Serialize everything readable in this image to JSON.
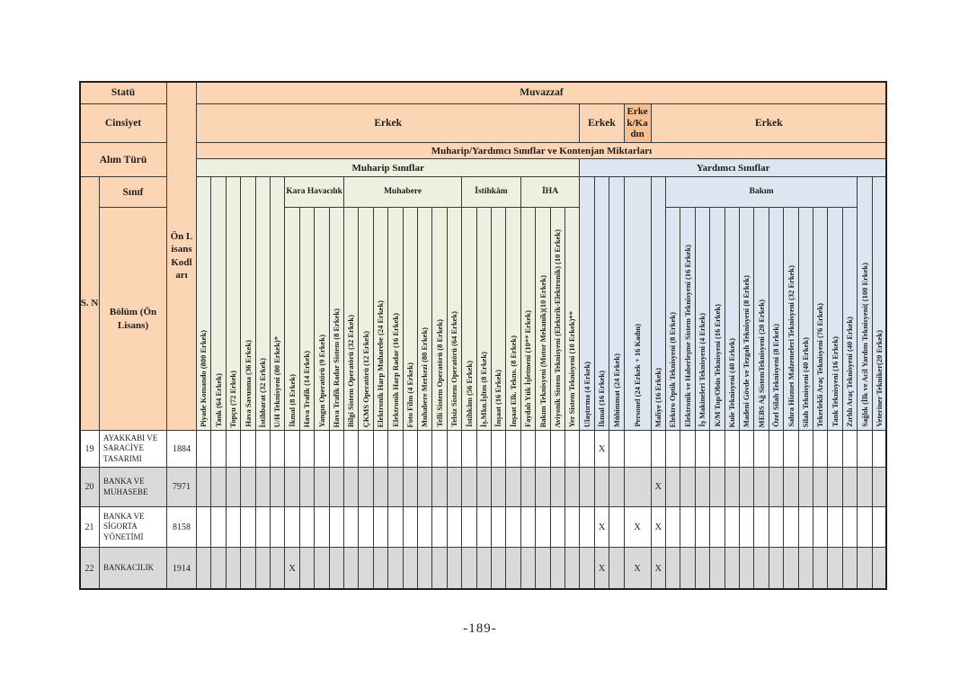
{
  "page": {
    "footer": "-189-"
  },
  "colors": {
    "header_orange": "#FCD5B4",
    "header_orange_dark": "#FABF8F",
    "muharip_green": "#EBF1DE",
    "yardimci_blue": "#DCE6F1",
    "row_gray": "#D9D9D9",
    "border": "#3A3A3A",
    "text": "#1F1F1F"
  },
  "table": {
    "left_header": {
      "statu": "Statü",
      "cinsiyet": "Cinsiyet",
      "alim_turu": "Alım Türü",
      "sinif": "Sınıf",
      "sn": "S. N",
      "bolum": "Bölüm (Ön Lisans)",
      "on_lisans_kodlari": "Ön Lisans Kodları"
    },
    "top_header": {
      "muvazzaf": "Muvazzaf",
      "cinsiyet_cells": [
        "Erkek",
        "Erkek",
        "Erkek/Kadın",
        "Erkek"
      ],
      "alim_band": "Muharip/Yardımcı Sınıflar ve Kontenjan Miktarları",
      "muharip_band": "Muharip Sınıflar",
      "yardimci_band": "Yardımcı Sınıflar"
    },
    "mark_symbol": "X",
    "columns": [
      {
        "label": "Piyade Komando (800 Erkek)",
        "section": "muharip",
        "group": null
      },
      {
        "label": "Tank (64 Erkek)",
        "section": "muharip",
        "group": null
      },
      {
        "label": "Topçu (72 Erkek)",
        "section": "muharip",
        "group": null
      },
      {
        "label": "Hava Savunma (36 Erkek)",
        "section": "muharip",
        "group": null
      },
      {
        "label": "İstihbarat (32 Erkek)",
        "section": "muharip",
        "group": null
      },
      {
        "label": "U/H Teknisyeni  (80 Erkek)*",
        "section": "muharip",
        "group": null
      },
      {
        "label": "İkmal  (8 Erkek)",
        "section": "muharip",
        "group": "Kara Havacılık"
      },
      {
        "label": "Hava Trafik  (14 Erkek)",
        "section": "muharip",
        "group": "Kara Havacılık"
      },
      {
        "label": "Yangın Operatörü  (9 Erkek)",
        "section": "muharip",
        "group": "Kara Havacılık"
      },
      {
        "label": "Hava Trafik Radar Sistem (8 Erkek)",
        "section": "muharip",
        "group": "Kara Havacılık"
      },
      {
        "label": "Bilgi Sistem Operatörü  (32 Erkek)",
        "section": "muharip",
        "group": "Muhabere"
      },
      {
        "label": "ÇKMS Operatörü (12 Erkek)",
        "section": "muharip",
        "group": "Muhabere"
      },
      {
        "label": "Elektronik Harp Muharebe (24 Erkek)",
        "section": "muharip",
        "group": "Muhabere"
      },
      {
        "label": "Elektronik Harp Radar  (16 Erkek)",
        "section": "muharip",
        "group": "Muhabere"
      },
      {
        "label": "Foto Film (4 Erkek)",
        "section": "muharip",
        "group": "Muhabere"
      },
      {
        "label": "Muhabere Merkezi (80 Erkek)",
        "section": "muharip",
        "group": "Muhabere"
      },
      {
        "label": "Telli Sistem Operatörü (8 Erkek)",
        "section": "muharip",
        "group": "Muhabere"
      },
      {
        "label": "Telsiz Sistem Operatörü (64 Erkek)",
        "section": "muharip",
        "group": "Muhabere"
      },
      {
        "label": "İstihkâm (56 Erkek)",
        "section": "muharip",
        "group": "İstihkâm"
      },
      {
        "label": "İş.Mkn.İşltm (8 Erkek)",
        "section": "muharip",
        "group": "İstihkâm"
      },
      {
        "label": "İnşaat  (16 Erkek)",
        "section": "muharip",
        "group": "İstihkâm"
      },
      {
        "label": "İnşaat Elk. Tekns. (8 Erkek)",
        "section": "muharip",
        "group": "İstihkâm"
      },
      {
        "label": "Faydalı Yük İşletmeni (10** Erkek)",
        "section": "muharip",
        "group": "İHA"
      },
      {
        "label": "Bakım Teknisyeni (Motor Mekanik)(10 Erkek)",
        "section": "muharip",
        "group": "İHA"
      },
      {
        "label": "Aviyonik Sistem Teknisyeni (Elektrik-Elektronik) (10 Erkek)",
        "section": "muharip",
        "group": "İHA"
      },
      {
        "label": "Yer Sistem Teknisyeni (10 Erkek)**",
        "section": "muharip",
        "group": "İHA"
      },
      {
        "label": "Ulaştırma  (4 Erkek)",
        "section": "yardimci",
        "group": null
      },
      {
        "label": "İkmal  (16 Erkek)",
        "section": "yardimci",
        "group": null
      },
      {
        "label": "Mühimmat  (24 Erkek)",
        "section": "yardimci",
        "group": null
      },
      {
        "label": "Personel  (24 Erkek + 16 Kadın)",
        "section": "yardimci",
        "group": null,
        "wide": true
      },
      {
        "label": "Maliye  (16 Erkek)",
        "section": "yardimci",
        "group": null
      },
      {
        "label": "Elektro Optik Teknisyeni   (8 Erkek)",
        "section": "yardimci",
        "group": "Bakım"
      },
      {
        "label": "Elektronik ve Haberleşme Sistem Teknisyeni (16 Erkek)",
        "section": "yardimci",
        "group": "Bakım"
      },
      {
        "label": "İş Makineleri Teknisyeni (4 Erkek)",
        "section": "yardimci",
        "group": "Bakım"
      },
      {
        "label": "K/M Top/Obüs  Teknisyeni (16 Erkek)",
        "section": "yardimci",
        "group": "Bakım"
      },
      {
        "label": "Kule Teknisyeni (40 Erkek)",
        "section": "yardimci",
        "group": "Bakım"
      },
      {
        "label": "Madeni Gövde ve Tezgah Teknisyeni  (8 Erkek)",
        "section": "yardimci",
        "group": "Bakım"
      },
      {
        "label": "MEBS Ağ SistemTeknisyeni (20 Erkek)",
        "section": "yardimci",
        "group": "Bakım"
      },
      {
        "label": "Özel Silah Teknisyeni (8 Erkek)",
        "section": "yardimci",
        "group": "Bakım"
      },
      {
        "label": "Sahra Hizmet  Malzemeleri  Teknisyeni  (32 Erkek)",
        "section": "yardimci",
        "group": "Bakım"
      },
      {
        "label": "Silah Teknisyeni  (40 Erkek)",
        "section": "yardimci",
        "group": "Bakım"
      },
      {
        "label": "Tekerlekli Araç Teknisyeni  (76 Erkek)",
        "section": "yardimci",
        "group": "Bakım"
      },
      {
        "label": "Tank Teknisyeni  (16 Erkek)",
        "section": "yardimci",
        "group": "Bakım"
      },
      {
        "label": "Zırhlı Araç Teknisyeni  (40 Erkek)",
        "section": "yardimci",
        "group": "Bakım"
      },
      {
        "label": "Sağlık (İlk ve Acil Yardım Teknisyeni( (100 Erkek)",
        "section": "yardimci",
        "group": null
      },
      {
        "label": "Veteriner Tekniker(20 Erkek)",
        "section": "yardimci",
        "group": null
      }
    ],
    "rows": [
      {
        "sn": "19",
        "bolum": "AYAKKABI VE SARACİYE TASARIMI",
        "kod": "1884",
        "marks": [
          28
        ]
      },
      {
        "sn": "20",
        "bolum": "BANKA VE MUHASEBE",
        "kod": "7971",
        "marks": [
          31
        ]
      },
      {
        "sn": "21",
        "bolum": "BANKA VE SİGORTA YÖNETİMİ",
        "kod": "8158",
        "marks": [
          28,
          30,
          31
        ]
      },
      {
        "sn": "22",
        "bolum": "BANKACILIK",
        "kod": "1914",
        "marks": [
          7,
          28,
          30,
          31
        ]
      }
    ]
  }
}
